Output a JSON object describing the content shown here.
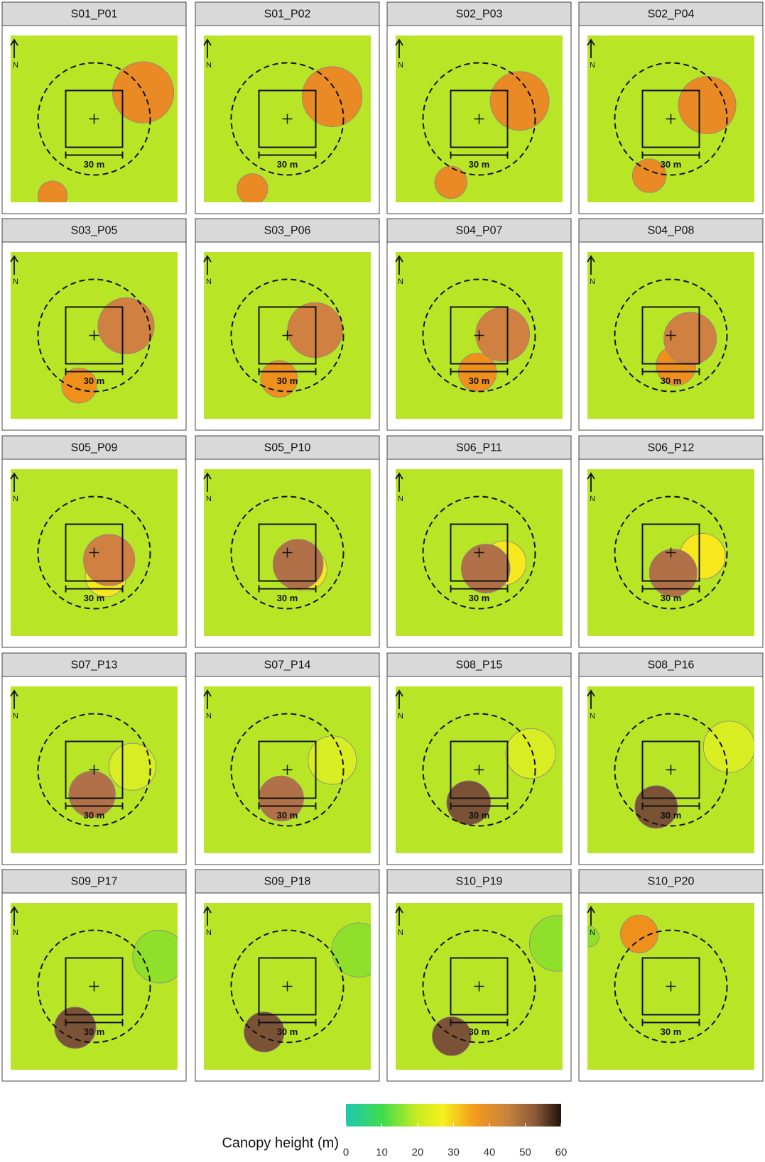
{
  "panels": [
    {
      "title": "S01_P01"
    },
    {
      "title": "S01_P02"
    },
    {
      "title": "S02_P03"
    },
    {
      "title": "S02_P04"
    },
    {
      "title": "S03_P05"
    },
    {
      "title": "S03_P06"
    },
    {
      "title": "S04_P07"
    },
    {
      "title": "S04_P08"
    },
    {
      "title": "S05_P09"
    },
    {
      "title": "S05_P10"
    },
    {
      "title": "S06_P11"
    },
    {
      "title": "S06_P12"
    },
    {
      "title": "S07_P13"
    },
    {
      "title": "S07_P14"
    },
    {
      "title": "S08_P15"
    },
    {
      "title": "S08_P16"
    },
    {
      "title": "S09_P17"
    },
    {
      "title": "S09_P18"
    },
    {
      "title": "S10_P19"
    },
    {
      "title": "S10_P20"
    }
  ],
  "scale_label": "30 m",
  "north_label": "N",
  "legend": {
    "title": "Canopy height (m)",
    "ticks": [
      0,
      10,
      20,
      30,
      40,
      50,
      60
    ]
  }
}
